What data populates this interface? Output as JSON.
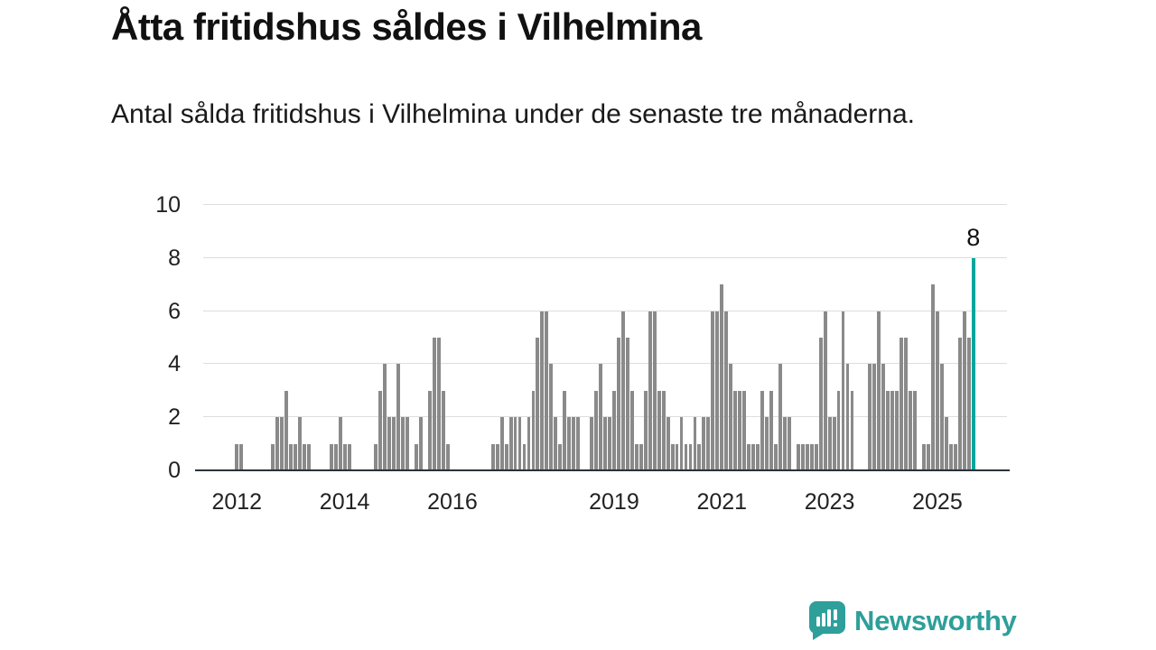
{
  "header": {
    "title": "Åtta fritidshus såldes i Vilhelmina",
    "subtitle": "Antal sålda fritidshus i Vilhelmina under de senaste tre månaderna."
  },
  "chart_data": {
    "type": "bar",
    "title": "Åtta fritidshus såldes i Vilhelmina",
    "subtitle": "Antal sålda fritidshus i Vilhelmina under de senaste tre månaderna.",
    "xlabel": "",
    "ylabel": "",
    "ylim": [
      0,
      10
    ],
    "yticks": [
      0,
      2,
      4,
      6,
      8,
      10
    ],
    "grid": true,
    "legend": false,
    "frequency": "monthly",
    "start_month": "2011-06",
    "end_month": "2025-09",
    "values": [
      0,
      0,
      0,
      0,
      0,
      0,
      0,
      1,
      1,
      0,
      0,
      0,
      0,
      0,
      0,
      1,
      2,
      2,
      3,
      1,
      1,
      2,
      1,
      1,
      0,
      0,
      0,
      0,
      1,
      1,
      2,
      1,
      1,
      0,
      0,
      0,
      0,
      0,
      1,
      3,
      4,
      2,
      2,
      4,
      2,
      2,
      0,
      1,
      2,
      0,
      3,
      5,
      5,
      3,
      1,
      0,
      0,
      0,
      0,
      0,
      0,
      0,
      0,
      0,
      1,
      1,
      2,
      1,
      2,
      2,
      2,
      1,
      2,
      3,
      5,
      6,
      6,
      4,
      2,
      1,
      3,
      2,
      2,
      2,
      0,
      0,
      2,
      3,
      4,
      2,
      2,
      3,
      5,
      6,
      5,
      3,
      1,
      1,
      3,
      6,
      6,
      3,
      3,
      2,
      1,
      1,
      2,
      1,
      1,
      2,
      1,
      2,
      2,
      6,
      6,
      7,
      6,
      4,
      3,
      3,
      3,
      1,
      1,
      1,
      3,
      2,
      3,
      1,
      4,
      2,
      2,
      0,
      1,
      1,
      1,
      1,
      1,
      5,
      6,
      2,
      2,
      3,
      6,
      4,
      3,
      0,
      0,
      0,
      4,
      4,
      6,
      4,
      3,
      3,
      3,
      5,
      5,
      3,
      3,
      0,
      1,
      1,
      7,
      6,
      4,
      2,
      1,
      1,
      5,
      6,
      5,
      8
    ],
    "highlight_index": 171,
    "highlight_value": 8,
    "highlight_value_label": "8",
    "xticks": [
      {
        "label": "2012",
        "month_index": 7
      },
      {
        "label": "2014",
        "month_index": 31
      },
      {
        "label": "2016",
        "month_index": 55
      },
      {
        "label": "2019",
        "month_index": 91
      },
      {
        "label": "2021",
        "month_index": 115
      },
      {
        "label": "2023",
        "month_index": 139
      },
      {
        "label": "2025",
        "month_index": 163
      }
    ],
    "axis_slots": 179,
    "colors": {
      "bar": "#8a8a8a",
      "highlight": "#00A79E",
      "brand": "#2E9F9A",
      "grid": "#dddddd",
      "axis": "#28323c"
    }
  },
  "footer": {
    "brand": "Newsworthy"
  }
}
